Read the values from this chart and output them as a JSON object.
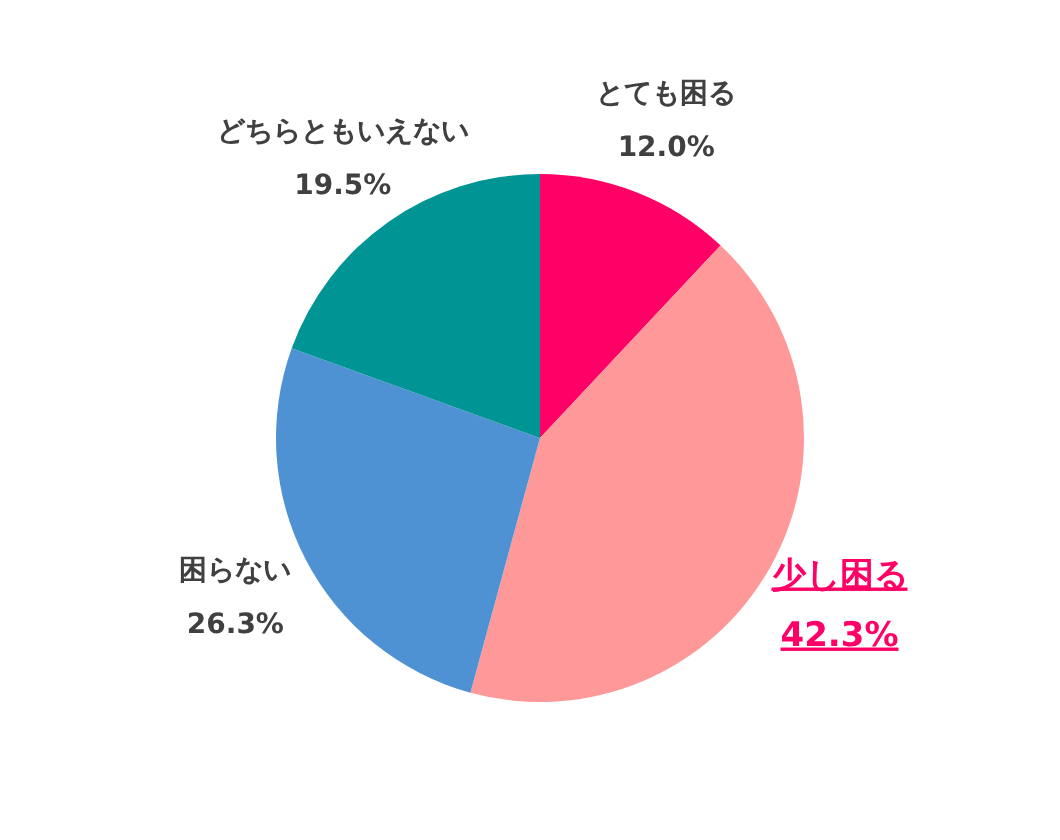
{
  "chart_data": {
    "type": "pie",
    "categories": [
      "とても困る",
      "少し困る",
      "困らない",
      "どちらともいえない"
    ],
    "values": [
      12.0,
      42.3,
      26.3,
      19.5
    ],
    "colors": [
      "#ff0066",
      "#ff9999",
      "#4f92d4",
      "#009494"
    ],
    "value_labels": [
      "12.0%",
      "42.3%",
      "26.3%",
      "19.5%"
    ]
  }
}
